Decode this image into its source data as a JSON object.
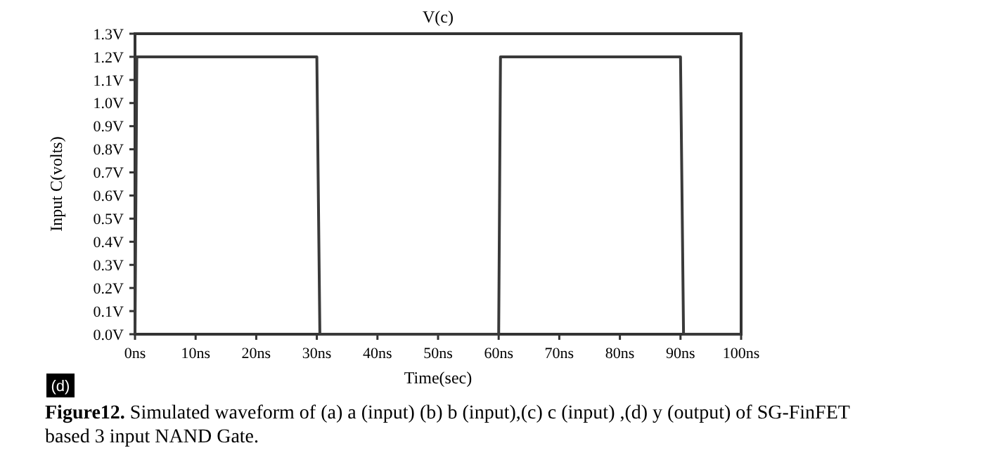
{
  "chart_data": {
    "type": "line",
    "title": "V(c)",
    "xlabel": "Time(sec)",
    "ylabel": "Input C(volts)",
    "x": [
      0,
      0.3,
      30,
      30.5,
      60,
      60.3,
      90,
      90.5,
      100
    ],
    "series": [
      {
        "color": "#3a3a3a",
        "values": [
          0,
          1.2,
          1.2,
          0,
          0,
          1.2,
          1.2,
          0,
          0
        ]
      }
    ],
    "xlim": [
      0,
      100
    ],
    "xticks": [
      {
        "value": 0,
        "label": "0ns"
      },
      {
        "value": 10,
        "label": "10ns"
      },
      {
        "value": 20,
        "label": "20ns"
      },
      {
        "value": 30,
        "label": "30ns"
      },
      {
        "value": 40,
        "label": "40ns"
      },
      {
        "value": 50,
        "label": "50ns"
      },
      {
        "value": 60,
        "label": "60ns"
      },
      {
        "value": 70,
        "label": "70ns"
      },
      {
        "value": 80,
        "label": "80ns"
      },
      {
        "value": 90,
        "label": "90ns"
      },
      {
        "value": 100,
        "label": "100ns"
      }
    ],
    "ylim": [
      0,
      1.3
    ],
    "yticks": [
      {
        "value": 0,
        "label": "0.0V"
      },
      {
        "value": 0.1,
        "label": "0.1V"
      },
      {
        "value": 0.2,
        "label": "0.2V"
      },
      {
        "value": 0.3,
        "label": "0.3V"
      },
      {
        "value": 0.4,
        "label": "0.4V"
      },
      {
        "value": 0.5,
        "label": "0.5V"
      },
      {
        "value": 0.6,
        "label": "0.6V"
      },
      {
        "value": 0.7,
        "label": "0.7V"
      },
      {
        "value": 0.8,
        "label": "0.8V"
      },
      {
        "value": 0.9,
        "label": "0.9V"
      },
      {
        "value": 1.0,
        "label": "1.0V"
      },
      {
        "value": 1.1,
        "label": "1.1V"
      },
      {
        "value": 1.2,
        "label": "1.2V"
      },
      {
        "value": 1.3,
        "label": "1.3V"
      }
    ],
    "grid": false,
    "marker": "none",
    "line_style": "solid",
    "annotations": [
      "(d)",
      "Figure12.",
      "Simulated waveform of (a) a (input) (b) b (input),(c) c (input) ,(d) y (output) of SG-FinFET based 3 input NAND Gate."
    ]
  }
}
